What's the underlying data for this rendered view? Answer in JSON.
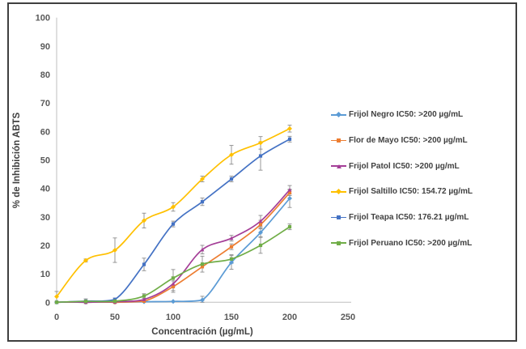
{
  "chart_data": {
    "type": "line",
    "title": "",
    "xlabel": "Concentración (µg/mL)",
    "ylabel": "% de Inhibición ABTS",
    "xlim": [
      0,
      250
    ],
    "ylim": [
      0,
      100
    ],
    "xticks": [
      0,
      50,
      100,
      150,
      200,
      250
    ],
    "yticks": [
      0,
      10,
      20,
      30,
      40,
      50,
      60,
      70,
      80,
      90,
      100
    ],
    "grid": false,
    "legend_position": "right",
    "x": [
      0,
      25,
      50,
      75,
      100,
      125,
      150,
      175,
      200
    ],
    "series": [
      {
        "name": "Frijol Negro",
        "legend_label": "Frijol Negro IC50: >200 µg/mL",
        "color": "#5B9BD5",
        "marker": "diamond",
        "values": [
          0,
          0,
          0,
          0.2,
          0.3,
          0.8,
          14,
          24.5,
          36.5
        ],
        "errors": [
          0,
          0,
          0,
          0,
          0,
          1.3,
          2.4,
          1.5,
          3.2
        ]
      },
      {
        "name": "Flor de Mayo",
        "legend_label": "Flor de Mayo IC50: >200 µg/mL",
        "color": "#ED7D31",
        "marker": "square",
        "values": [
          0,
          0,
          0,
          0.4,
          5.5,
          12.5,
          19.5,
          27.3,
          38.5
        ],
        "errors": [
          0,
          0,
          0,
          0,
          2,
          0,
          1,
          1.5,
          1
        ]
      },
      {
        "name": "Frijol Patol",
        "legend_label": "Frijol Patol IC50: >200 µg/mL",
        "color": "#A43E97",
        "marker": "triangle",
        "values": [
          0,
          0,
          0.2,
          1,
          6.5,
          18.5,
          22.5,
          28.5,
          39.5
        ],
        "errors": [
          0,
          0,
          0,
          0,
          2.4,
          1.5,
          1,
          2,
          1.5
        ]
      },
      {
        "name": "Frijol Saltillo",
        "legend_label": "Frijol Saltillo IC50: 154.72 µg/mL",
        "color": "#FFC000",
        "marker": "diamond",
        "values": [
          2,
          14.7,
          18.3,
          28.7,
          33.5,
          43.3,
          51.8,
          56,
          61
        ],
        "errors": [
          1.8,
          0.5,
          4.3,
          2.6,
          1.5,
          1,
          3.3,
          2.2,
          1.2
        ]
      },
      {
        "name": "Frijol Teapa",
        "legend_label": "Frijol Teapa IC50: 176.21 µg/mL",
        "color": "#4472C4",
        "marker": "square",
        "values": [
          0,
          0.4,
          1,
          13.3,
          27.5,
          35.3,
          43.3,
          51.4,
          57.3
        ],
        "errors": [
          0,
          0.8,
          0.5,
          2.2,
          1,
          1.3,
          1,
          5,
          1
        ]
      },
      {
        "name": "Frijol Peruano",
        "legend_label": "Frijol Peruano IC50: >200 µg/mL",
        "color": "#70AD47",
        "marker": "square",
        "values": [
          0,
          0.3,
          0.4,
          2.2,
          8.5,
          13.4,
          15.2,
          20,
          26.5
        ],
        "errors": [
          0,
          0,
          0,
          0.8,
          3,
          2.8,
          1.5,
          2.8,
          1
        ]
      }
    ],
    "colors": {
      "axis_line": "#BFBFBF",
      "tick_text": "#595959",
      "axis_title_text": "#404040",
      "error_bar": "#8C8C8C",
      "legend_text": "#404040",
      "frame_border": "#3F3F3F"
    }
  }
}
